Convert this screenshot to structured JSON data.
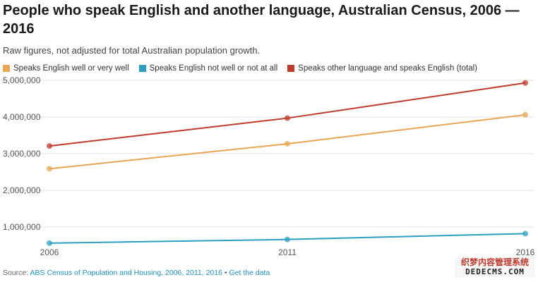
{
  "chart_data": {
    "type": "line",
    "title": "People who speak English and another language, Australian Census, 2006 — 2016",
    "subtitle": "Raw figures, not adjusted for total Australian population growth.",
    "x": [
      "2006",
      "2011",
      "2016"
    ],
    "ylim": [
      500000,
      5000000
    ],
    "yticks": [
      1000000,
      2000000,
      3000000,
      4000000,
      5000000
    ],
    "ytick_labels": [
      "1,000,000",
      "2,000,000",
      "3,000,000",
      "4,000,000",
      "5,000,000"
    ],
    "grid": true,
    "legend_position": "top-left",
    "series": [
      {
        "name": "Speaks English well or very well",
        "color": "#e8a552",
        "values": [
          2590000,
          3270000,
          4060000
        ]
      },
      {
        "name": "Speaks English not well or not at all",
        "color": "#2a9fc1",
        "values": [
          560000,
          660000,
          820000
        ]
      },
      {
        "name": "Speaks other language and speaks English (total)",
        "color": "#c0392b",
        "values": [
          3210000,
          3970000,
          4930000
        ]
      }
    ]
  },
  "footer": {
    "prefix": "Source:",
    "source_link": "ABS Census of Population and Housing, 2006, 2011, 2016",
    "separator": "•",
    "data_link": "Get the data"
  },
  "watermark": {
    "line1": "织梦内容管理系统",
    "line2": "DEDECMS.COM"
  }
}
